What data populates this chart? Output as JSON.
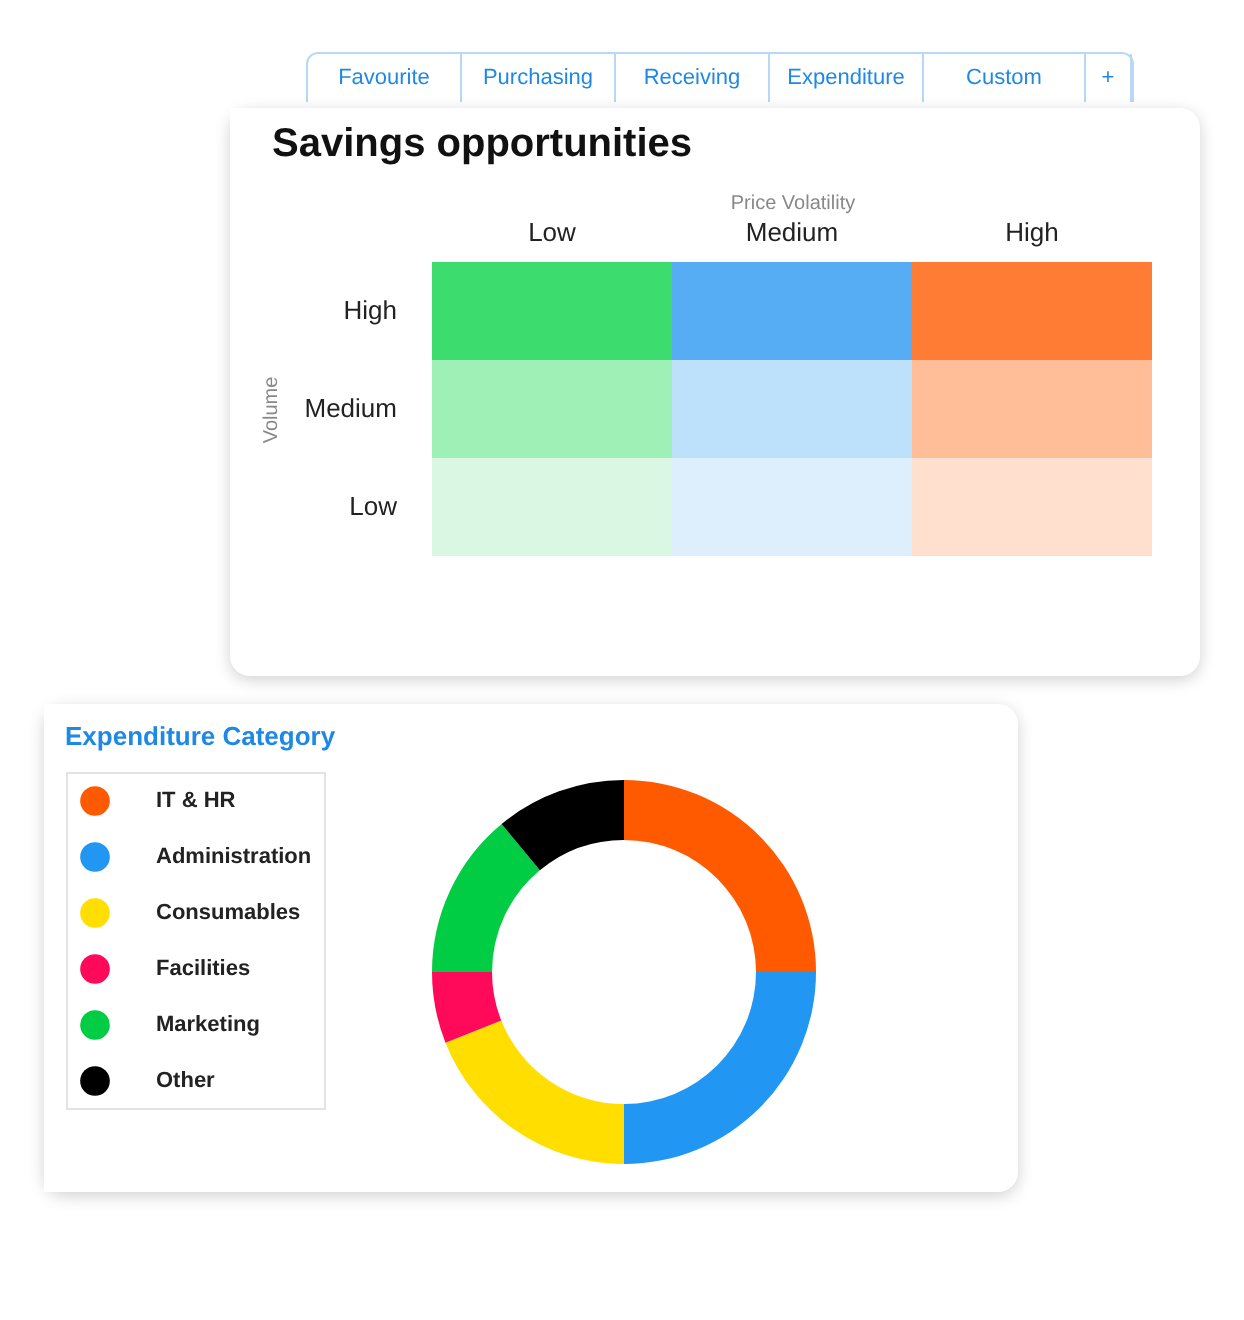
{
  "chart_data": [
    {
      "type": "other",
      "title": "Savings opportunities",
      "xlabel": "Price Volatility",
      "ylabel": "Volume",
      "categories": [
        "Low",
        "Medium",
        "High"
      ],
      "y_categories": [
        "High",
        "Medium",
        "Low"
      ],
      "annotations": [
        "Favourite",
        "Purchasing",
        "Receiving",
        "Expenditure",
        "Custom",
        "+"
      ]
    },
    {
      "type": "donut",
      "title": "Expenditure Category",
      "legend": "left",
      "categories": [
        "IT & HR",
        "Administration",
        "Consumables",
        "Facilities",
        "Marketing",
        "Other"
      ],
      "values": [
        25,
        25,
        19,
        6,
        14,
        11
      ],
      "colors": [
        "#ff5a00",
        "#2196f3",
        "#ffde00",
        "#ff0a5a",
        "#00cc44",
        "#000000"
      ]
    }
  ]
}
